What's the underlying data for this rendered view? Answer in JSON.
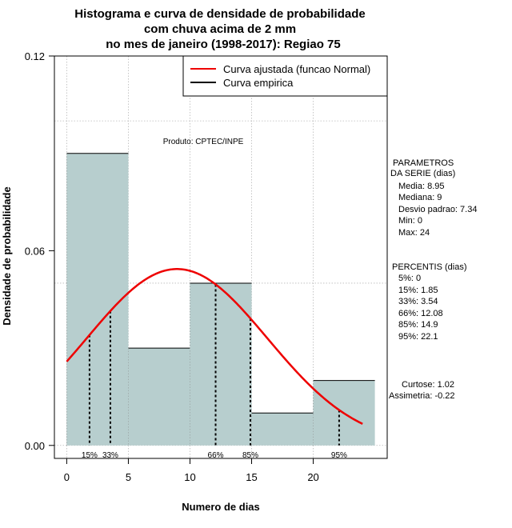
{
  "chart_data": {
    "type": "histogram",
    "title_lines": [
      "Histograma e curva de densidade de probabilidade",
      "com chuva acima de 2 mm",
      "no mes de janeiro (1998-2017): Regiao 75"
    ],
    "xlabel": "Numero de dias",
    "ylabel": "Densidade de probabilidade",
    "xlim": [
      -1,
      26
    ],
    "ylim": [
      -0.004,
      0.12
    ],
    "x_ticks": [
      0,
      5,
      10,
      15,
      20
    ],
    "y_ticks": [
      0.0,
      0.06,
      0.12
    ],
    "y_tick_labels": [
      "0.00",
      "0.06",
      "0.12"
    ],
    "x_grid": [
      0,
      5,
      10,
      15,
      20
    ],
    "y_grid": [
      0.0,
      0.05,
      0.1
    ],
    "bins": [
      {
        "start": 0,
        "end": 5,
        "density": 0.09
      },
      {
        "start": 5,
        "end": 10,
        "density": 0.03
      },
      {
        "start": 10,
        "end": 15,
        "density": 0.05
      },
      {
        "start": 15,
        "end": 20,
        "density": 0.01
      },
      {
        "start": 20,
        "end": 25,
        "density": 0.02
      }
    ],
    "bar_color": "#b7cece",
    "curve_color": "#ee0000",
    "normal_fit": {
      "mean": 8.95,
      "sd": 7.34,
      "x_from": 0,
      "x_to": 24
    },
    "percentile_markers": [
      {
        "label": "15%",
        "x": 1.85
      },
      {
        "label": "33%",
        "x": 3.54
      },
      {
        "label": "66%",
        "x": 12.08
      },
      {
        "label": "85%",
        "x": 14.9
      },
      {
        "label": "95%",
        "x": 22.1
      }
    ],
    "legend": [
      {
        "label": "Curva ajustada (funcao Normal)",
        "color": "#ee0000"
      },
      {
        "label": "Curva empirica",
        "color": "#000000"
      }
    ],
    "annotation": "Produto: CPTEC/INPE"
  },
  "side_panel": {
    "params_title": [
      "PARAMETROS",
      "DA SERIE (dias)"
    ],
    "params": [
      "Media: 8.95",
      "Mediana: 9",
      "Desvio padrao: 7.34",
      "Min: 0",
      "Max: 24"
    ],
    "percentis_title": "PERCENTIS (dias)",
    "percentis": [
      "5%: 0",
      "15%: 1.85",
      "33%: 3.54",
      "66%: 12.08",
      "85%: 14.9",
      "95%: 22.1"
    ],
    "curtose": "Curtose: 1.02",
    "assimetria": "Assimetria: -0.22"
  }
}
